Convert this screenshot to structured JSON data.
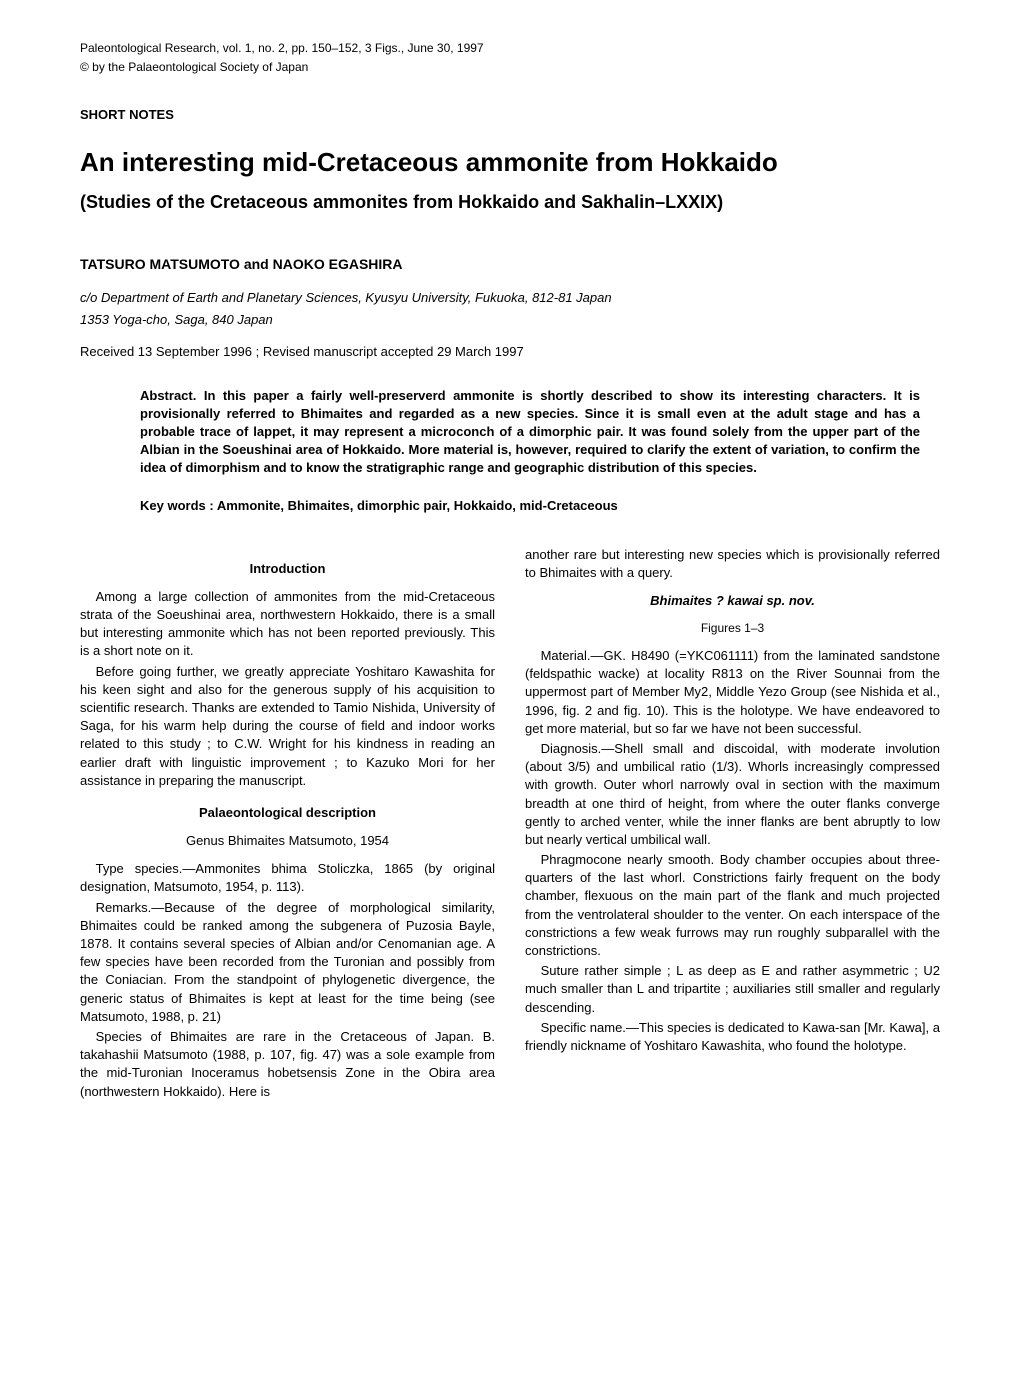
{
  "header": {
    "citation": "Paleontological Research, vol. 1, no. 2, pp. 150–152, 3 Figs., June 30, 1997",
    "copyright": "© by the Palaeontological Society of Japan",
    "shortNotes": "SHORT NOTES"
  },
  "title": "An interesting mid-Cretaceous ammonite from Hokkaido",
  "subtitle": "(Studies of the Cretaceous ammonites from Hokkaido and Sakhalin–LXXIX)",
  "authors": "TATSURO MATSUMOTO and NAOKO EGASHIRA",
  "affiliation1": "c/o Department of Earth and Planetary Sciences, Kyusyu University, Fukuoka, 812-81 Japan",
  "affiliation2": "1353 Yoga-cho, Saga, 840 Japan",
  "received": "Received 13 September 1996 ; Revised manuscript accepted 29 March 1997",
  "abstract": {
    "label": "Abstract.",
    "text": "In this paper a fairly well-preserverd ammonite is shortly described to show its interesting characters. It is provisionally referred to Bhimaites and regarded as a new species. Since it is small even at the adult stage and has a probable trace of lappet, it may represent a microconch of a dimorphic pair. It was found solely from the upper part of the Albian in the Soeushinai area of Hokkaido. More material is, however, required to clarify the extent of variation, to confirm the idea of dimorphism and to know the stratigraphic range and geographic distribution of this species."
  },
  "keywords": {
    "label": "Key words :",
    "text": "Ammonite, Bhimaites, dimorphic pair, Hokkaido, mid-Cretaceous"
  },
  "left": {
    "introHeading": "Introduction",
    "intro1": "Among a large collection of ammonites from the mid-Cretaceous strata of the Soeushinai area, northwestern Hokkaido, there is a small but interesting ammonite which has not been reported previously. This is a short note on it.",
    "intro2": "Before going further, we greatly appreciate Yoshitaro Kawashita for his keen sight and also for the generous supply of his acquisition to scientific research. Thanks are extended to Tamio Nishida, University of Saga, for his warm help during the course of field and indoor works related to this study ; to C.W. Wright for his kindness in reading an earlier draft with linguistic improvement ; to Kazuko Mori for her assistance in preparing the manuscript.",
    "palHeading": "Palaeontological description",
    "genus": "Genus Bhimaites Matsumoto, 1954",
    "typeSpecies": "Type species.—Ammonites bhima Stoliczka, 1865 (by original designation, Matsumoto, 1954, p. 113).",
    "remarks": "Remarks.—Because of the degree of morphological similarity, Bhimaites could be ranked among the subgenera of Puzosia Bayle, 1878. It contains several species of Albian and/or Cenomanian age. A few species have been recorded from the Turonian and possibly from the Coniacian. From the standpoint of phylogenetic divergence, the generic status of Bhimaites is kept at least for the time being (see Matsumoto, 1988, p. 21)",
    "species": "Species of Bhimaites are rare in the Cretaceous of Japan. B. takahashii Matsumoto (1988, p. 107, fig. 47) was a sole example from the mid-Turonian Inoceramus hobetsensis Zone in the Obira area (northwestern Hokkaido). Here is"
  },
  "right": {
    "continuation": "another rare but interesting new species which is provisionally referred to Bhimaites with a query.",
    "speciesHeading": "Bhimaites ? kawai sp. nov.",
    "figuresLabel": "Figures 1–3",
    "material": "Material.—GK. H8490 (=YKC061111) from the laminated sandstone (feldspathic wacke) at locality R813 on the River Sounnai from the uppermost part of Member My2, Middle Yezo Group (see Nishida et al., 1996, fig. 2 and fig. 10). This is the holotype. We have endeavored to get more material, but so far we have not been successful.",
    "diagnosis": "Diagnosis.—Shell small and discoidal, with moderate involution (about 3/5) and umbilical ratio (1/3). Whorls increasingly compressed with growth. Outer whorl narrowly oval in section with the maximum breadth at one third of height, from where the outer flanks converge gently to arched venter, while the inner flanks are bent abruptly to low but nearly vertical umbilical wall.",
    "phragmocone": "Phragmocone nearly smooth. Body chamber occupies about three-quarters of the last whorl. Constrictions fairly frequent on the body chamber, flexuous on the main part of the flank and much projected from the ventrolateral shoulder to the venter. On each interspace of the constrictions a few weak furrows may run roughly subparallel with the constrictions.",
    "suture": "Suture rather simple ; L as deep as E and rather asymmetric ; U2 much smaller than L and tripartite ; auxiliaries still smaller and regularly descending.",
    "specificName": "Specific name.—This species is dedicated to Kawa-san [Mr. Kawa], a friendly nickname of Yoshitaro Kawashita, who found the holotype."
  }
}
